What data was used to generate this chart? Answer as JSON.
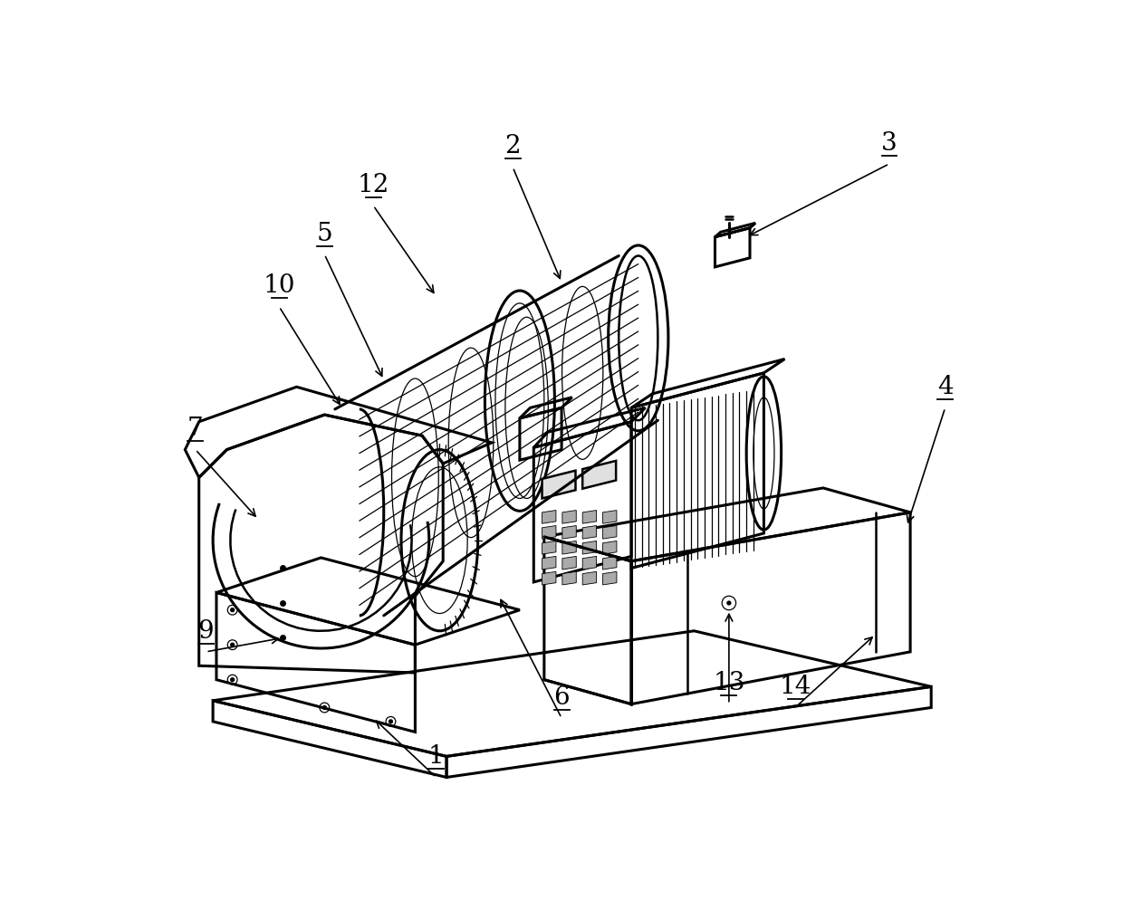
{
  "background_color": "#ffffff",
  "line_color": "#000000",
  "line_width": 1.8,
  "label_fontsize": 20,
  "fig_width": 12.4,
  "fig_height": 9.94,
  "dpi": 100
}
